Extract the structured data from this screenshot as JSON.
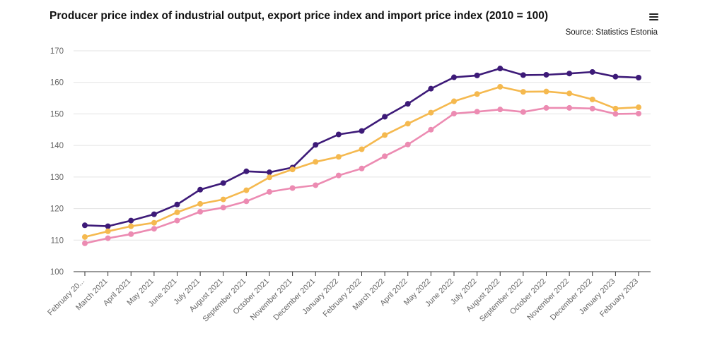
{
  "title": "Producer price index of industrial output, export price index and import price index (2010 = 100)",
  "source": "Source: Statistics Estonia",
  "menu_icon": "hamburger-menu-icon",
  "chart_data": {
    "type": "line",
    "title": "Producer price index of industrial output, export price index and import price index (2010 = 100)",
    "xlabel": "",
    "ylabel": "",
    "ylim": [
      100,
      170
    ],
    "yticks": [
      100,
      110,
      120,
      130,
      140,
      150,
      160,
      170
    ],
    "grid": true,
    "legend": "none",
    "categories": [
      "February 20...",
      "March 2021",
      "April 2021",
      "May 2021",
      "June 2021",
      "July 2021",
      "August 2021",
      "September 2021",
      "October 2021",
      "November 2021",
      "December 2021",
      "January 2022",
      "February 2022",
      "March 2022",
      "April 2022",
      "May 2022",
      "June 2022",
      "July 2022",
      "August 2022",
      "September 2022",
      "October 2022",
      "November 2022",
      "December 2022",
      "January 2023",
      "February 2023"
    ],
    "series": [
      {
        "color": "#3d1a78",
        "values": [
          114.7,
          114.4,
          116.2,
          118.2,
          121.3,
          126.0,
          128.1,
          131.8,
          131.5,
          133.0,
          140.2,
          143.5,
          144.6,
          149.1,
          153.2,
          158.0,
          161.6,
          162.2,
          164.4,
          162.3,
          162.4,
          162.8,
          163.3,
          161.8,
          161.5
        ]
      },
      {
        "color": "#f5b94f",
        "values": [
          111.0,
          112.8,
          114.4,
          115.5,
          118.8,
          121.5,
          122.9,
          125.8,
          129.9,
          132.4,
          134.8,
          136.4,
          138.8,
          143.3,
          146.9,
          150.4,
          154.0,
          156.3,
          158.6,
          157.0,
          157.1,
          156.5,
          154.6,
          151.7,
          152.1
        ]
      },
      {
        "color": "#ec8bb2",
        "values": [
          109.0,
          110.6,
          111.9,
          113.6,
          116.2,
          119.0,
          120.3,
          122.3,
          125.3,
          126.5,
          127.4,
          130.5,
          132.7,
          136.6,
          140.3,
          145.0,
          150.1,
          150.7,
          151.4,
          150.6,
          151.9,
          151.9,
          151.7,
          150.0,
          150.1
        ]
      }
    ]
  }
}
